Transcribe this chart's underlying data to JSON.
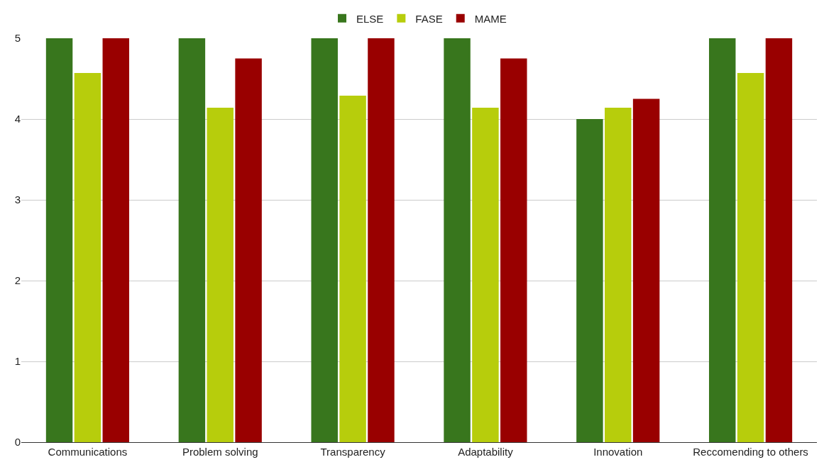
{
  "chart_data": {
    "type": "bar",
    "categories": [
      "Communications",
      "Problem solving",
      "Transparency",
      "Adaptability",
      "Innovation",
      "Reccomending to others"
    ],
    "series": [
      {
        "name": "ELSE",
        "color": "#38761d",
        "values": [
          5,
          5,
          5,
          5,
          4,
          5
        ]
      },
      {
        "name": "FASE",
        "color": "#b7cd0c",
        "values": [
          4.57,
          4.14,
          4.29,
          4.14,
          4.14,
          4.57
        ]
      },
      {
        "name": "MAME",
        "color": "#990000",
        "values": [
          5,
          4.75,
          5,
          4.75,
          4.25,
          5
        ]
      }
    ],
    "ylim": [
      0,
      5
    ],
    "yticks": [
      0,
      1,
      2,
      3,
      4,
      5
    ],
    "grid": "y",
    "legend": "top"
  }
}
